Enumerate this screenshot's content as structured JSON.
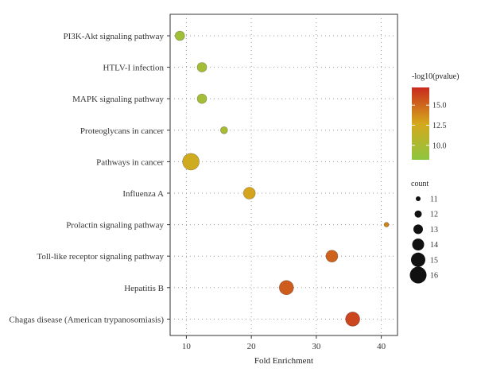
{
  "chart_data": {
    "type": "scatter",
    "title": "",
    "xlabel": "Fold Enrichment",
    "ylabel": "",
    "xlim": [
      7.5,
      42.5
    ],
    "xticks": [
      10,
      20,
      30,
      40
    ],
    "grid": true,
    "categories": [
      "PI3K-Akt signaling pathway",
      "HTLV-I infection",
      "MAPK signaling pathway",
      "Proteoglycans in cancer",
      "Pathways in cancer",
      "Influenza A",
      "Prolactin signaling pathway",
      "Toll-like receptor signaling pathway",
      "Hepatitis B",
      "Chagas disease (American trypanosomiasis)"
    ],
    "points": [
      {
        "category": "PI3K-Akt signaling pathway",
        "fold_enrichment": 9.0,
        "neg_log10_pvalue": 9.3,
        "count": 13
      },
      {
        "category": "HTLV-I infection",
        "fold_enrichment": 12.4,
        "neg_log10_pvalue": 9.6,
        "count": 13
      },
      {
        "category": "MAPK signaling pathway",
        "fold_enrichment": 12.4,
        "neg_log10_pvalue": 9.6,
        "count": 13
      },
      {
        "category": "Proteoglycans in cancer",
        "fold_enrichment": 15.8,
        "neg_log10_pvalue": 9.9,
        "count": 12
      },
      {
        "category": "Pathways in cancer",
        "fold_enrichment": 10.7,
        "neg_log10_pvalue": 12.3,
        "count": 16
      },
      {
        "category": "Influenza A",
        "fold_enrichment": 19.7,
        "neg_log10_pvalue": 12.8,
        "count": 14
      },
      {
        "category": "Prolactin signaling pathway",
        "fold_enrichment": 40.8,
        "neg_log10_pvalue": 14.0,
        "count": 11
      },
      {
        "category": "Toll-like receptor signaling pathway",
        "fold_enrichment": 32.4,
        "neg_log10_pvalue": 15.2,
        "count": 14
      },
      {
        "category": "Hepatitis B",
        "fold_enrichment": 25.4,
        "neg_log10_pvalue": 15.4,
        "count": 15
      },
      {
        "category": "Chagas disease (American trypanosomiasis)",
        "fold_enrichment": 35.6,
        "neg_log10_pvalue": 16.2,
        "count": 15
      }
    ],
    "color_legend": {
      "title": "-log10(pvalue)",
      "min": 8.2,
      "max": 17.2,
      "ticks": [
        10.0,
        12.5,
        15.0
      ],
      "tick_labels": [
        "10.0",
        "12.5",
        "15.0"
      ],
      "colors": [
        "#8dc63f",
        "#d4a81c",
        "#c92a1e"
      ]
    },
    "size_legend": {
      "title": "count",
      "values": [
        11,
        12,
        13,
        14,
        15,
        16
      ],
      "labels": [
        "11",
        "12",
        "13",
        "14",
        "15",
        "16"
      ]
    },
    "legend_position": "right"
  }
}
